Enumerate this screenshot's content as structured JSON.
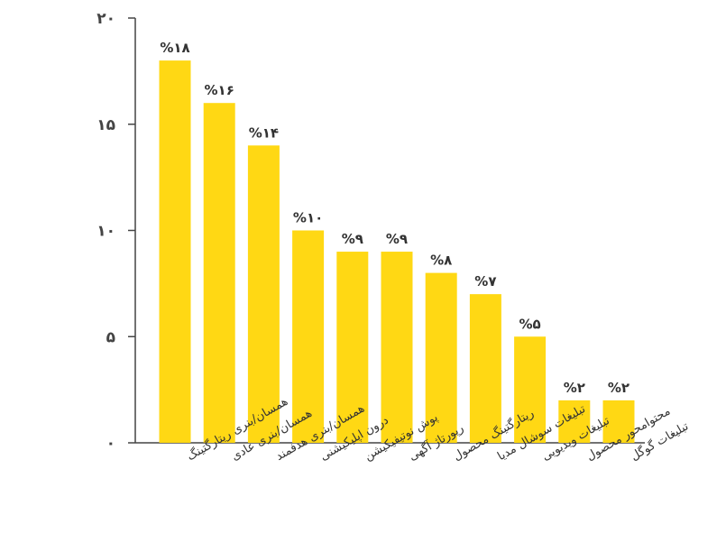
{
  "chart_data": {
    "type": "bar",
    "categories": [
      "همسان/بنری ریتارگتینگ",
      "همسان/بنری عادی",
      "همسان/بنری هدفمند",
      "درون اپلیکیشنی",
      "پوش نوتیفیکیشن",
      "رپورتاژ آگهی",
      "ریتارگتینگ محصول",
      "تبلیغات سوشال مدیا",
      "تبلیغات ویدیویی",
      "محتوامحور محصول",
      "تبلیغات گوگل"
    ],
    "values": [
      18,
      16,
      14,
      10,
      9,
      9,
      8,
      7,
      5,
      2,
      2
    ],
    "data_labels": [
      "%۱۸",
      "%۱۶",
      "%۱۴",
      "%۱۰",
      "%۹",
      "%۹",
      "%۸",
      "%۷",
      "%۵",
      "%۲",
      "%۲"
    ],
    "y_ticks": [
      0,
      5,
      10,
      15,
      20
    ],
    "y_tick_labels": [
      "۰",
      "۵",
      "۱۰",
      "۱۵",
      "۲۰"
    ],
    "ylim": [
      0,
      20
    ],
    "grid": false,
    "legend": "none",
    "bar_color": "#FFD814",
    "axis_color": "#444444"
  }
}
